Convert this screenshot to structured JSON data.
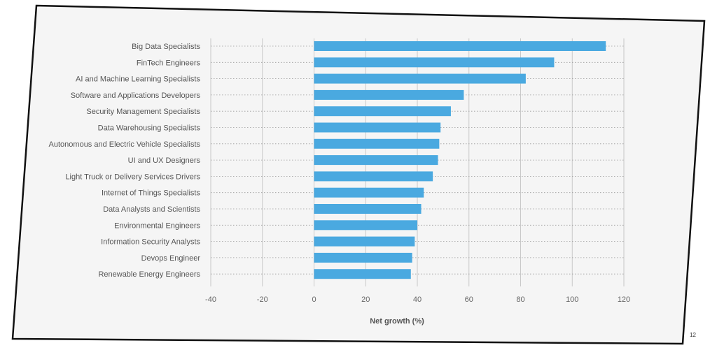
{
  "page": {
    "number": "12"
  },
  "colors": {
    "bar": "#4aa9e0",
    "panel": "#f5f5f5",
    "frame": "#111111",
    "grid": "#c8c8c8"
  },
  "chart_data": {
    "type": "bar",
    "orientation": "horizontal",
    "title": "",
    "xlabel": "Net growth (%)",
    "ylabel": "",
    "xlim": [
      -40,
      120
    ],
    "xticks": [
      -40,
      -20,
      0,
      20,
      40,
      60,
      80,
      100,
      120
    ],
    "grid": true,
    "categories": [
      "Big Data Specialists",
      "FinTech Engineers",
      "AI and Machine Learning Specialists",
      "Software and Applications Developers",
      "Security Management Specialists",
      "Data Warehousing Specialists",
      "Autonomous and Electric Vehicle Specialists",
      "UI and UX Designers",
      "Light Truck or Delivery Services Drivers",
      "Internet of Things Specialists",
      "Data Analysts and Scientists",
      "Environmental Engineers",
      "Information Security Analysts",
      "Devops Engineer",
      "Renewable Energy Engineers"
    ],
    "values": [
      113,
      93,
      82,
      58,
      53,
      49,
      48.5,
      48,
      46,
      42.5,
      41.5,
      40,
      39,
      38,
      37.5
    ]
  }
}
